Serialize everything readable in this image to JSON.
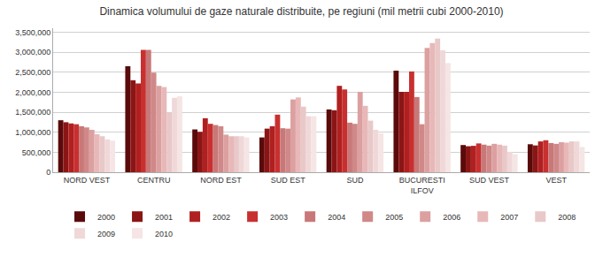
{
  "chart_data": {
    "type": "bar",
    "title": "Dinamica volumului de gaze naturale distribuite, pe regiuni (mil metrii cubi 2000-2010)",
    "categories": [
      "NORD VEST",
      "CENTRU",
      "NORD EST",
      "SUD EST",
      "SUD",
      "BUCURESTI\nILFOV",
      "SUD VEST",
      "VEST"
    ],
    "series": [
      {
        "name": "2000",
        "color": "#5a0a0a",
        "values": [
          1300000,
          2650000,
          1070000,
          870000,
          1570000,
          2540000,
          680000,
          700000
        ]
      },
      {
        "name": "2001",
        "color": "#8b1515",
        "values": [
          1250000,
          2300000,
          1010000,
          1090000,
          1550000,
          2010000,
          650000,
          670000
        ]
      },
      {
        "name": "2002",
        "color": "#b02020",
        "values": [
          1220000,
          2220000,
          1350000,
          1150000,
          2160000,
          2010000,
          660000,
          770000
        ]
      },
      {
        "name": "2003",
        "color": "#c83030",
        "values": [
          1200000,
          3060000,
          1210000,
          1440000,
          2070000,
          2520000,
          720000,
          800000
        ]
      },
      {
        "name": "2004",
        "color": "#c87878",
        "values": [
          1150000,
          3060000,
          1180000,
          1100000,
          1240000,
          1880000,
          690000,
          730000
        ]
      },
      {
        "name": "2005",
        "color": "#d08888",
        "values": [
          1120000,
          2490000,
          1150000,
          1090000,
          1210000,
          1200000,
          665000,
          710000
        ]
      },
      {
        "name": "2006",
        "color": "#dca0a0",
        "values": [
          1060000,
          2160000,
          940000,
          1820000,
          2010000,
          3110000,
          710000,
          750000
        ]
      },
      {
        "name": "2007",
        "color": "#e8b8b8",
        "values": [
          950000,
          2130000,
          900000,
          1870000,
          1660000,
          3230000,
          690000,
          740000
        ]
      },
      {
        "name": "2008",
        "color": "#e8c8c8",
        "values": [
          900000,
          1490000,
          900000,
          1640000,
          1290000,
          3340000,
          665000,
          770000
        ]
      },
      {
        "name": "2009",
        "color": "#f0d8d8",
        "values": [
          820000,
          1860000,
          900000,
          1400000,
          1060000,
          3050000,
          510000,
          770000
        ]
      },
      {
        "name": "2010",
        "color": "#f5e5e5",
        "values": [
          790000,
          1900000,
          870000,
          1400000,
          970000,
          2730000,
          450000,
          630000
        ]
      }
    ],
    "ylim": [
      0,
      3600000
    ],
    "yticks": [
      0,
      {
        "value": 500000,
        "label": "500,000"
      },
      {
        "value": 1000000,
        "label": "1,000,000"
      },
      {
        "value": 1500000,
        "label": "1,500,000"
      },
      {
        "value": 2000000,
        "label": "2,000,000"
      },
      {
        "value": 2500000,
        "label": "2,500,000"
      },
      {
        "value": 3000000,
        "label": "3,000,000"
      },
      {
        "value": 3500000,
        "label": "3,500,000"
      }
    ],
    "grid": true,
    "legend": "bottom"
  }
}
